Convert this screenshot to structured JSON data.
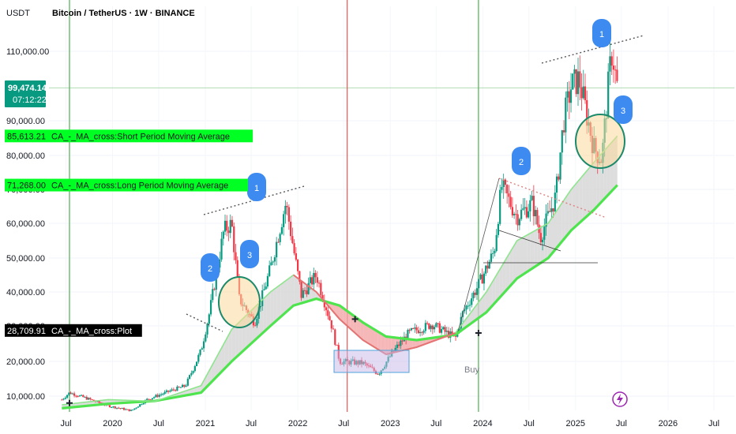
{
  "header": {
    "currency": "USDT",
    "title": "Bitcoin / TetherUS · 1W · BINANCE"
  },
  "price_box": {
    "price": "99,474.14",
    "countdown": "07:12:22",
    "color": "#089981"
  },
  "indicator_labels": [
    {
      "value": "85,613.21",
      "text": "CA_-_MA_cross:Short Period Moving Average",
      "color": "#00ff22",
      "y": 85613.21
    },
    {
      "value": "71,268.00",
      "text": "CA_-_MA_cross:Long Period Moving Average",
      "color": "#00ff22",
      "y": 71268
    },
    {
      "value": "28,709.91",
      "text": "CA_-_MA_cross:Plot",
      "color": "#000000",
      "y": 28709.91
    }
  ],
  "annotations": {
    "buy_label": "Buy",
    "waves": [
      "1",
      "2",
      "3",
      "1",
      "2",
      "3"
    ],
    "lightning_icon": "lightning-icon"
  },
  "colors": {
    "up": "#089981",
    "down": "#f23645",
    "short_ma": "#8ee58e",
    "long_ma": "#4ee44e",
    "fill_bull": "#d5d5d5",
    "fill_bear": "#f2a5a5",
    "wave_badge": "#3d8bf0",
    "vline_green": "#4caf50",
    "vline_red": "#ef5350"
  },
  "chart_data": {
    "type": "candlestick",
    "title": "Bitcoin / TetherUS · 1W · BINANCE",
    "ylabel": "USDT",
    "ylim": [
      5000,
      118000
    ],
    "y_ticks": [
      10000,
      20000,
      30000,
      40000,
      50000,
      60000,
      70000,
      80000,
      90000,
      110000
    ],
    "y_tick_labels": [
      "10,000.00",
      "20,000.00",
      "30,000.00",
      "40,000.00",
      "50,000.00",
      "60,000.00",
      "70,000.00",
      "80,000.00",
      "90,000.00",
      "110,000.00"
    ],
    "x_ticks": [
      "Jul",
      "2020",
      "Jul",
      "2021",
      "Jul",
      "2022",
      "Jul",
      "2023",
      "Jul",
      "2024",
      "Jul",
      "2025",
      "Jul",
      "2026",
      "Jul"
    ],
    "x_range": [
      "2019-05",
      "2026-10"
    ],
    "price_path": [
      [
        "2019-06",
        9000
      ],
      [
        "2019-07",
        11000
      ],
      [
        "2019-09",
        9500
      ],
      [
        "2019-12",
        7200
      ],
      [
        "2020-03",
        5800
      ],
      [
        "2020-05",
        9000
      ],
      [
        "2020-08",
        11500
      ],
      [
        "2020-10",
        13000
      ],
      [
        "2020-12",
        23000
      ],
      [
        "2021-01",
        33000
      ],
      [
        "2021-02",
        46000
      ],
      [
        "2021-03",
        58000
      ],
      [
        "2021-04",
        60000
      ],
      [
        "2021-05",
        38000
      ],
      [
        "2021-07",
        31000
      ],
      [
        "2021-09",
        47000
      ],
      [
        "2021-11",
        66000
      ],
      [
        "2022-01",
        39000
      ],
      [
        "2022-03",
        45000
      ],
      [
        "2022-05",
        30000
      ],
      [
        "2022-06",
        20000
      ],
      [
        "2022-09",
        19500
      ],
      [
        "2022-11",
        16500
      ],
      [
        "2023-01",
        23000
      ],
      [
        "2023-03",
        28000
      ],
      [
        "2023-06",
        30500
      ],
      [
        "2023-09",
        26500
      ],
      [
        "2023-10",
        34000
      ],
      [
        "2023-12",
        42000
      ],
      [
        "2024-02",
        52000
      ],
      [
        "2024-03",
        71000
      ],
      [
        "2024-05",
        62000
      ],
      [
        "2024-07",
        66000
      ],
      [
        "2024-08",
        56000
      ],
      [
        "2024-10",
        68000
      ],
      [
        "2024-11",
        90000
      ],
      [
        "2024-12",
        100000
      ],
      [
        "2025-01",
        102000
      ],
      [
        "2025-03",
        82000
      ],
      [
        "2025-04",
        79000
      ],
      [
        "2025-05",
        104000
      ],
      [
        "2025-05-25",
        110000
      ],
      [
        "2025-06",
        99474
      ]
    ],
    "short_ma": [
      [
        "2019-06",
        7500
      ],
      [
        "2019-12",
        9000
      ],
      [
        "2020-06",
        8500
      ],
      [
        "2020-12",
        13000
      ],
      [
        "2021-04",
        29000
      ],
      [
        "2021-09",
        40000
      ],
      [
        "2021-12",
        45000
      ],
      [
        "2022-03",
        40000
      ],
      [
        "2022-06",
        32000
      ],
      [
        "2022-09",
        26000
      ],
      [
        "2022-12",
        22000
      ],
      [
        "2023-04",
        24000
      ],
      [
        "2023-09",
        28000
      ],
      [
        "2024-01",
        40000
      ],
      [
        "2024-05",
        55000
      ],
      [
        "2024-09",
        60000
      ],
      [
        "2024-12",
        70000
      ],
      [
        "2025-03",
        78000
      ],
      [
        "2025-06",
        85613
      ]
    ],
    "long_ma": [
      [
        "2019-06",
        6500
      ],
      [
        "2019-12",
        7800
      ],
      [
        "2020-06",
        8600
      ],
      [
        "2020-12",
        11000
      ],
      [
        "2021-04",
        20000
      ],
      [
        "2021-09",
        30000
      ],
      [
        "2021-12",
        36000
      ],
      [
        "2022-03",
        38000
      ],
      [
        "2022-06",
        36000
      ],
      [
        "2022-09",
        31000
      ],
      [
        "2022-12",
        27000
      ],
      [
        "2023-04",
        26000
      ],
      [
        "2023-09",
        27500
      ],
      [
        "2024-01",
        34000
      ],
      [
        "2024-05",
        44000
      ],
      [
        "2024-09",
        50000
      ],
      [
        "2024-12",
        58000
      ],
      [
        "2025-03",
        64000
      ],
      [
        "2025-06",
        71268
      ]
    ],
    "vertical_lines": [
      {
        "date": "2019-07",
        "color": "green"
      },
      {
        "date": "2022-07",
        "color": "red"
      },
      {
        "date": "2023-12",
        "color": "green"
      }
    ],
    "cross_markers": [
      {
        "date": "2019-07",
        "value": 8000
      },
      {
        "date": "2022-08",
        "value": 32000
      },
      {
        "date": "2023-12",
        "value": 28000
      }
    ],
    "last_price": 99474.14,
    "current_price_line": 99474.14
  }
}
